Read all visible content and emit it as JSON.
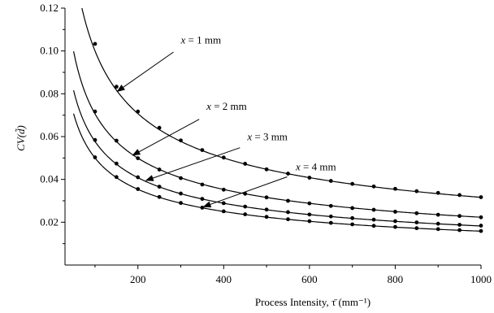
{
  "chart_data": {
    "type": "scatter",
    "title": "",
    "xlabel": "Process Intensity, τ̄ (mm⁻¹)",
    "ylabel": "CV(d̃)",
    "xlim": [
      30,
      1000
    ],
    "ylim": [
      0,
      0.12
    ],
    "xticks": [
      {
        "value": 200,
        "label": "200"
      },
      {
        "value": 400,
        "label": "400"
      },
      {
        "value": 600,
        "label": "600"
      },
      {
        "value": 800,
        "label": "800"
      },
      {
        "value": 1000,
        "label": "1000"
      }
    ],
    "yticks": [
      {
        "value": 0.02,
        "label": "0.02"
      },
      {
        "value": 0.04,
        "label": "0.04"
      },
      {
        "value": 0.06,
        "label": "0.06"
      },
      {
        "value": 0.08,
        "label": "0.08"
      },
      {
        "value": 0.1,
        "label": "0.10"
      },
      {
        "value": 0.12,
        "label": "0.12"
      }
    ],
    "grid": false,
    "fit_curve_type": "power law fit line through points",
    "series": [
      {
        "name": "x = 1 mm",
        "x": [
          100,
          150,
          200,
          250,
          300,
          350,
          400,
          450,
          500,
          550,
          600,
          650,
          700,
          750,
          800,
          850,
          900,
          950,
          1000
        ],
        "y": [
          0.1033,
          0.0833,
          0.0717,
          0.0641,
          0.0582,
          0.0537,
          0.0502,
          0.0473,
          0.0447,
          0.0427,
          0.0408,
          0.0393,
          0.0379,
          0.0367,
          0.0356,
          0.0345,
          0.0337,
          0.0327,
          0.0317
        ],
        "fit": {
          "a": 1.0,
          "b": -0.5
        },
        "fit_x_range": [
          66,
          1000
        ]
      },
      {
        "name": "x = 2 mm",
        "x": [
          100,
          150,
          200,
          250,
          300,
          350,
          400,
          450,
          500,
          550,
          600,
          650,
          700,
          750,
          800,
          850,
          900,
          950,
          1000
        ],
        "y": [
          0.0717,
          0.0581,
          0.0499,
          0.0446,
          0.0406,
          0.0376,
          0.0352,
          0.0333,
          0.0316,
          0.03,
          0.0288,
          0.0276,
          0.0266,
          0.0258,
          0.0249,
          0.0242,
          0.0235,
          0.0229,
          0.0223
        ],
        "fit": {
          "a": 0.706,
          "b": -0.5
        },
        "fit_x_range": [
          50,
          1000
        ]
      },
      {
        "name": "x = 3 mm",
        "x": [
          100,
          150,
          200,
          250,
          300,
          350,
          400,
          450,
          500,
          550,
          600,
          650,
          700,
          750,
          800,
          850,
          900,
          950,
          1000
        ],
        "y": [
          0.0584,
          0.0474,
          0.041,
          0.0366,
          0.0334,
          0.0309,
          0.0289,
          0.0273,
          0.0259,
          0.0247,
          0.0236,
          0.0227,
          0.0219,
          0.0212,
          0.0205,
          0.0199,
          0.0193,
          0.0188,
          0.0184
        ],
        "fit": {
          "a": 0.577,
          "b": -0.5
        },
        "fit_x_range": [
          50,
          1000
        ]
      },
      {
        "name": "x = 4 mm",
        "x": [
          100,
          150,
          200,
          250,
          300,
          350,
          400,
          450,
          500,
          550,
          600,
          650,
          700,
          750,
          800,
          850,
          900,
          950,
          1000
        ],
        "y": [
          0.0503,
          0.0411,
          0.0355,
          0.0318,
          0.029,
          0.0268,
          0.0251,
          0.0237,
          0.0225,
          0.0214,
          0.0205,
          0.0197,
          0.019,
          0.0183,
          0.0178,
          0.0172,
          0.0168,
          0.0163,
          0.0159
        ],
        "fit": {
          "a": 0.5,
          "b": -0.5
        },
        "fit_x_range": [
          50,
          1000
        ]
      }
    ],
    "annotations": [
      {
        "text": "x = 1 mm",
        "var": "x",
        "rest": " = 1 mm",
        "text_at": [
          300,
          0.1035
        ],
        "arrow_from": [
          283,
          0.0995
        ],
        "arrow_to": [
          152,
          0.0811
        ]
      },
      {
        "text": "x = 2 mm",
        "var": "x",
        "rest": " = 2 mm",
        "text_at": [
          360,
          0.0725
        ],
        "arrow_from": [
          343,
          0.0681
        ],
        "arrow_to": [
          188,
          0.0513
        ]
      },
      {
        "text": "x = 3 mm",
        "var": "x",
        "rest": " = 3 mm",
        "text_at": [
          455,
          0.0582
        ],
        "arrow_from": [
          438,
          0.0548
        ],
        "arrow_to": [
          219,
          0.0395
        ]
      },
      {
        "text": "x = 4 mm",
        "var": "x",
        "rest": " = 4 mm",
        "text_at": [
          568,
          0.0442
        ],
        "arrow_from": [
          548,
          0.0412
        ],
        "arrow_to": [
          353,
          0.0272
        ]
      }
    ]
  }
}
